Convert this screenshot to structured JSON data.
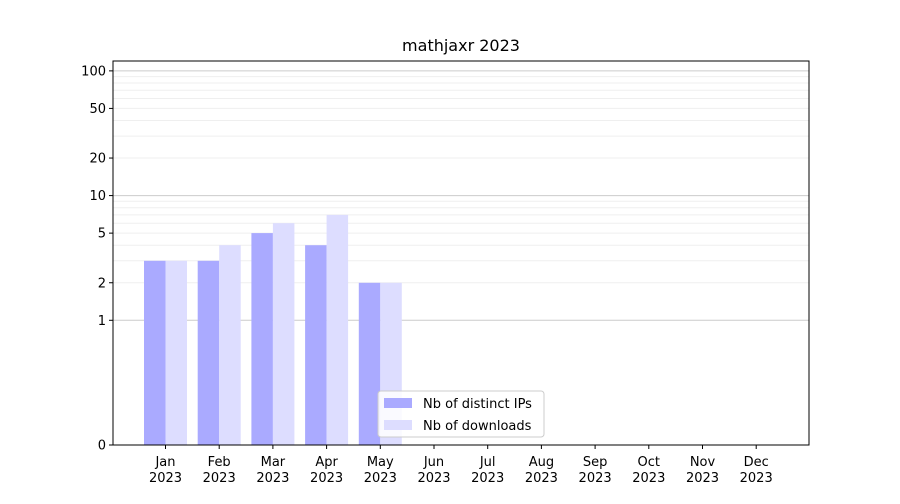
{
  "chart_data": {
    "type": "bar",
    "title": "mathjaxr 2023",
    "xlabel": "",
    "ylabel": "",
    "yscale": "symlog",
    "ylim": [
      0,
      120
    ],
    "yticks": [
      0,
      1,
      2,
      5,
      10,
      20,
      50,
      100
    ],
    "ytick_labels": [
      "0",
      "1",
      "2",
      "5",
      "10",
      "20",
      "50",
      "100"
    ],
    "categories": [
      "Jan\n2023",
      "Feb\n2023",
      "Mar\n2023",
      "Apr\n2023",
      "May\n2023",
      "Jun\n2023",
      "Jul\n2023",
      "Aug\n2023",
      "Sep\n2023",
      "Oct\n2023",
      "Nov\n2023",
      "Dec\n2023"
    ],
    "series": [
      {
        "name": "Nb of distinct IPs",
        "color": "#aaaaff",
        "values": [
          3,
          3,
          5,
          4,
          2,
          0,
          0,
          0,
          0,
          0,
          0,
          0
        ]
      },
      {
        "name": "Nb of downloads",
        "color": "#ddddff",
        "values": [
          3,
          4,
          6,
          7,
          2,
          0,
          0,
          0,
          0,
          0,
          0,
          0
        ]
      }
    ],
    "grid": true,
    "legend_position": "bottom-center"
  }
}
